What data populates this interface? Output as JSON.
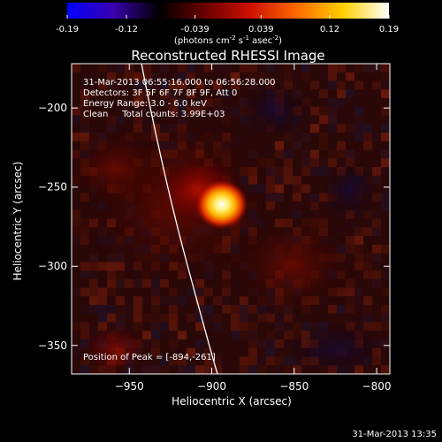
{
  "colorbar": {
    "tick_labels": [
      "-0.19",
      "-0.12",
      "-0.039",
      "0.039",
      "0.12",
      "0.19"
    ],
    "tick_values": [
      -0.19,
      -0.12,
      -0.039,
      0.039,
      0.12,
      0.19
    ],
    "range": [
      -0.19,
      0.19
    ],
    "units_parts": [
      "(photons cm",
      "-2",
      " s",
      "-1",
      " asec",
      "-2",
      ")"
    ],
    "stops": [
      "#0000ff",
      "#3a00b0",
      "#000000",
      "#6a0000",
      "#d01000",
      "#ff6a00",
      "#ffd000",
      "#ffffff"
    ]
  },
  "image": {
    "title": "Reconstructed RHESSI Image",
    "info_lines": [
      "31-Mar-2013 06:55:16.000 to 06:56:28.000",
      "Detectors: 3F 5F 6F 7F 8F 9F, Att 0",
      "Energy Range: 3.0 - 6.0 keV",
      "Clean     Total counts: 3.99E+03"
    ],
    "peak_label": "Position of Peak = [-894,-261]",
    "peak_position": [
      -894,
      -261
    ]
  },
  "axes": {
    "xlabel": "Heliocentric X (arcsec)",
    "ylabel": "Heliocentric Y (arcsec)",
    "x_ticks": [
      -950,
      -900,
      -850,
      -800
    ],
    "x_tick_labels": [
      "−950",
      "−900",
      "−850",
      "−800"
    ],
    "y_ticks": [
      -200,
      -250,
      -300,
      -350
    ],
    "y_tick_labels": [
      "−200",
      "−250",
      "−300",
      "−350"
    ],
    "xlim": [
      -985,
      -792
    ],
    "ylim": [
      -368,
      -172
    ]
  },
  "footer": {
    "timestamp": "31-Mar-2013 13:35"
  }
}
